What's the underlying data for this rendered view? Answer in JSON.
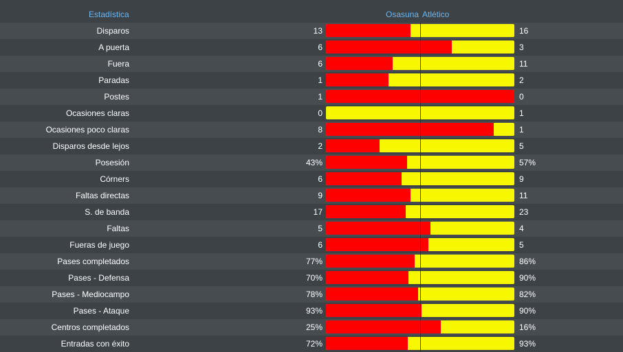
{
  "header": {
    "stat_label": "Estadística",
    "home_team": "Osasuna",
    "away_team": "Atlético"
  },
  "colors": {
    "home": "#ff0000",
    "away": "#f7f700",
    "header_text": "#6ab6f0"
  },
  "rows": [
    {
      "label": "Disparos",
      "home": "13",
      "away": "16",
      "home_share": 0.448
    },
    {
      "label": "A puerta",
      "home": "6",
      "away": "3",
      "home_share": 0.667
    },
    {
      "label": "Fuera",
      "home": "6",
      "away": "11",
      "home_share": 0.353
    },
    {
      "label": "Paradas",
      "home": "1",
      "away": "2",
      "home_share": 0.333
    },
    {
      "label": "Postes",
      "home": "1",
      "away": "0",
      "home_share": 1.0
    },
    {
      "label": "Ocasiones claras",
      "home": "0",
      "away": "1",
      "home_share": 0.0
    },
    {
      "label": "Ocasiones poco claras",
      "home": "8",
      "away": "1",
      "home_share": 0.889
    },
    {
      "label": "Disparos desde lejos",
      "home": "2",
      "away": "5",
      "home_share": 0.286
    },
    {
      "label": "Posesión",
      "home": "43%",
      "away": "57%",
      "home_share": 0.43
    },
    {
      "label": "Córners",
      "home": "6",
      "away": "9",
      "home_share": 0.4
    },
    {
      "label": "Faltas directas",
      "home": "9",
      "away": "11",
      "home_share": 0.45
    },
    {
      "label": "S. de banda",
      "home": "17",
      "away": "23",
      "home_share": 0.425
    },
    {
      "label": "Faltas",
      "home": "5",
      "away": "4",
      "home_share": 0.556
    },
    {
      "label": "Fueras de juego",
      "home": "6",
      "away": "5",
      "home_share": 0.545
    },
    {
      "label": "Pases completados",
      "home": "77%",
      "away": "86%",
      "home_share": 0.472
    },
    {
      "label": "Pases - Defensa",
      "home": "70%",
      "away": "90%",
      "home_share": 0.438
    },
    {
      "label": "Pases - Mediocampo",
      "home": "78%",
      "away": "82%",
      "home_share": 0.4875
    },
    {
      "label": "Pases - Ataque",
      "home": "93%",
      "away": "90%",
      "home_share": 0.508
    },
    {
      "label": "Centros completados",
      "home": "25%",
      "away": "16%",
      "home_share": 0.61
    },
    {
      "label": "Entradas con éxito",
      "home": "72%",
      "away": "93%",
      "home_share": 0.436
    }
  ]
}
